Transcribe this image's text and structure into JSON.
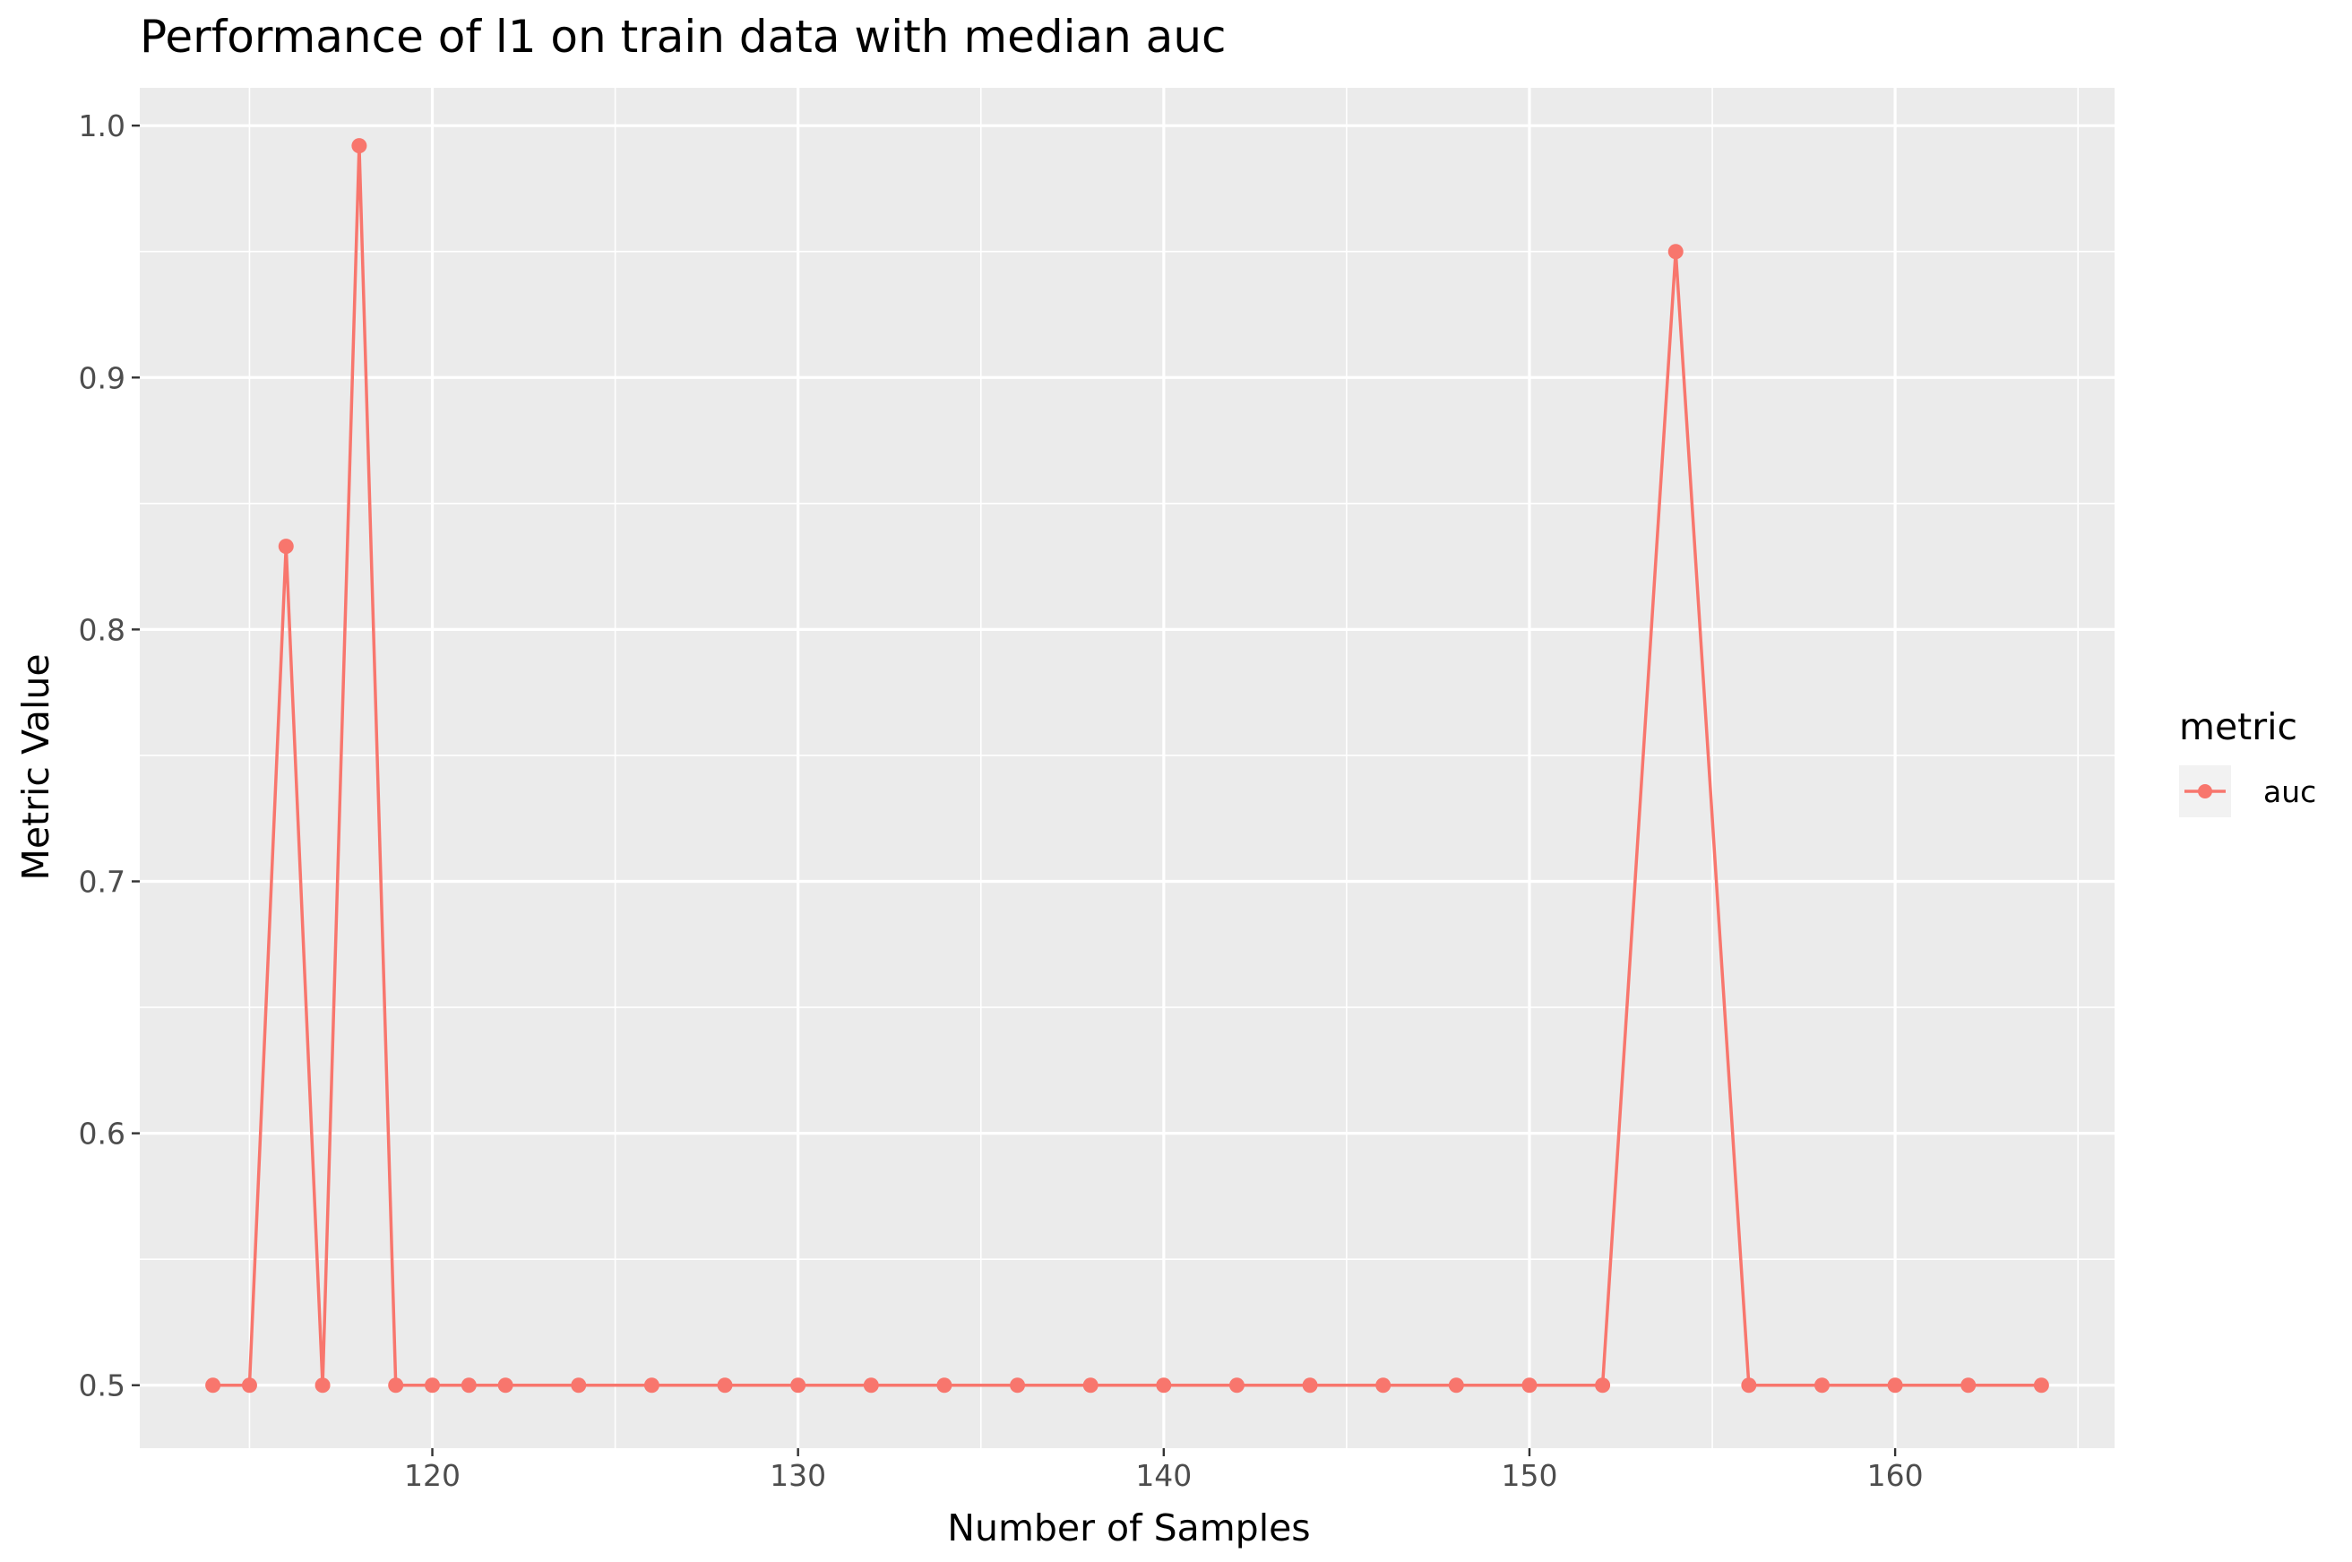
{
  "chart_data": {
    "type": "line",
    "title": "Performance of l1 on train data with median auc",
    "xlabel": "Number of Samples",
    "ylabel": "Metric Value",
    "xlim": [
      112,
      166
    ],
    "ylim": [
      0.475,
      1.015
    ],
    "x_ticks": [
      120,
      130,
      140,
      150,
      160
    ],
    "y_ticks": [
      0.5,
      0.6,
      0.7,
      0.8,
      0.9,
      1.0
    ],
    "x_tick_labels": [
      "120",
      "130",
      "140",
      "150",
      "160"
    ],
    "y_tick_labels": [
      "0.5",
      "0.6",
      "0.7",
      "0.8",
      "0.9",
      "1.0"
    ],
    "grid": true,
    "legend": {
      "title": "metric",
      "position": "right"
    },
    "series": [
      {
        "name": "auc",
        "color": "#f8766d",
        "x": [
          114,
          115,
          116,
          117,
          118,
          119,
          120,
          121,
          122,
          124,
          126,
          128,
          130,
          132,
          134,
          136,
          138,
          140,
          142,
          144,
          146,
          148,
          150,
          152,
          154,
          156,
          158,
          160,
          162,
          164
        ],
        "y": [
          0.5,
          0.5,
          0.833,
          0.5,
          0.992,
          0.5,
          0.5,
          0.5,
          0.5,
          0.5,
          0.5,
          0.5,
          0.5,
          0.5,
          0.5,
          0.5,
          0.5,
          0.5,
          0.5,
          0.5,
          0.5,
          0.5,
          0.5,
          0.5,
          0.95,
          0.5,
          0.5,
          0.5,
          0.5,
          0.5
        ]
      }
    ]
  }
}
